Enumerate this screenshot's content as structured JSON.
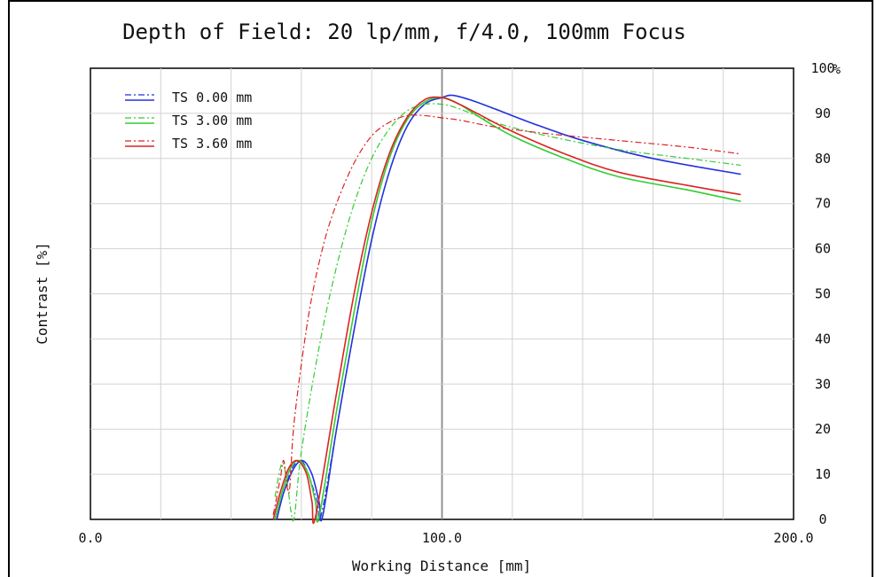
{
  "chart_data": {
    "type": "line",
    "title": "Depth of Field: 20 lp/mm, f/4.0, 100mm Focus",
    "xlabel": "Working Distance [mm]",
    "ylabel": "Contrast [%]",
    "y_unit": "%",
    "xlim": [
      0,
      200
    ],
    "ylim": [
      0,
      100
    ],
    "x_tick_labels": [
      "0.0",
      "100.0",
      "200.0"
    ],
    "x_tick_values": [
      0,
      100,
      200
    ],
    "y_tick_values": [
      0,
      10,
      20,
      30,
      40,
      50,
      60,
      70,
      80,
      90,
      100
    ],
    "grid": true,
    "legend_position": "top-left",
    "legend": [
      {
        "name": "TS 0.00 mm",
        "color": "#2233dd"
      },
      {
        "name": "TS 3.00 mm",
        "color": "#33cc33"
      },
      {
        "name": "TS 3.60 mm",
        "color": "#dd2222"
      }
    ],
    "series": [
      {
        "color": "#2233dd",
        "dash": "solid",
        "x": [
          53.0,
          55.0,
          58.0,
          60.5,
          63.0,
          65.0,
          66.0,
          70,
          75,
          80,
          85,
          90,
          95,
          100,
          103,
          108,
          115,
          125,
          140,
          160,
          185
        ],
        "y": [
          0,
          6,
          11.5,
          13,
          10,
          4,
          0.5,
          20,
          42,
          62,
          77,
          87,
          92,
          93.5,
          94,
          93,
          91,
          88,
          84,
          80,
          76.5
        ]
      },
      {
        "color": "#2233dd",
        "dash": "dashdot",
        "x": [
          53.0,
          55.0,
          57.5,
          60.0,
          62.0,
          64.5,
          65.5,
          70,
          75,
          80,
          85,
          90,
          95,
          100,
          103,
          108,
          115,
          125,
          140,
          160,
          185
        ],
        "y": [
          0,
          6,
          11.5,
          13,
          10,
          4,
          0.5,
          20,
          42,
          62,
          77,
          87,
          92,
          93.5,
          94,
          93,
          91,
          88,
          84,
          80,
          76.5
        ]
      },
      {
        "color": "#33cc33",
        "dash": "solid",
        "x": [
          52.5,
          54.5,
          57.0,
          59.5,
          62.0,
          64.0,
          65.0,
          70,
          75,
          80,
          85,
          90,
          95,
          100,
          105,
          110,
          120,
          135,
          150,
          170,
          185
        ],
        "y": [
          0,
          6,
          11.5,
          13,
          10,
          4,
          0.5,
          24,
          46,
          66,
          80,
          88.5,
          92.5,
          93.5,
          92,
          89.5,
          85,
          80,
          76,
          73,
          70.5
        ]
      },
      {
        "color": "#33cc33",
        "dash": "dashdot",
        "x": [
          52.5,
          54.5,
          56.0,
          57.0,
          58.0,
          60,
          65,
          70,
          75,
          80,
          85,
          90,
          95,
          100,
          105,
          115,
          130,
          150,
          170,
          185
        ],
        "y": [
          5,
          12.5,
          8,
          2,
          0.5,
          15,
          38,
          56,
          70,
          80,
          86.5,
          90.5,
          92,
          92,
          91,
          88,
          85,
          82,
          80,
          78.5
        ]
      },
      {
        "color": "#dd2222",
        "dash": "solid",
        "x": [
          52.0,
          54.0,
          56.5,
          59.0,
          61.5,
          63.0,
          64.0,
          70,
          75,
          80,
          85,
          90,
          95,
          100,
          105,
          110,
          120,
          135,
          150,
          170,
          185
        ],
        "y": [
          0,
          6,
          11.5,
          13,
          10,
          4,
          0.5,
          28,
          50,
          68,
          81,
          89,
          93,
          93.5,
          92,
          90,
          86,
          81,
          77,
          74,
          72
        ]
      },
      {
        "color": "#dd2222",
        "dash": "dashdot",
        "x": [
          52.0,
          54.0,
          55.0,
          56.5,
          58.0,
          62,
          66,
          70,
          75,
          80,
          85,
          90,
          95,
          100,
          105,
          115,
          130,
          150,
          170,
          185
        ],
        "y": [
          1,
          9,
          13,
          6,
          22,
          45,
          60,
          70,
          79,
          85,
          88,
          89.5,
          89.5,
          89,
          88.5,
          87,
          85.5,
          84,
          82.5,
          81
        ]
      }
    ]
  }
}
